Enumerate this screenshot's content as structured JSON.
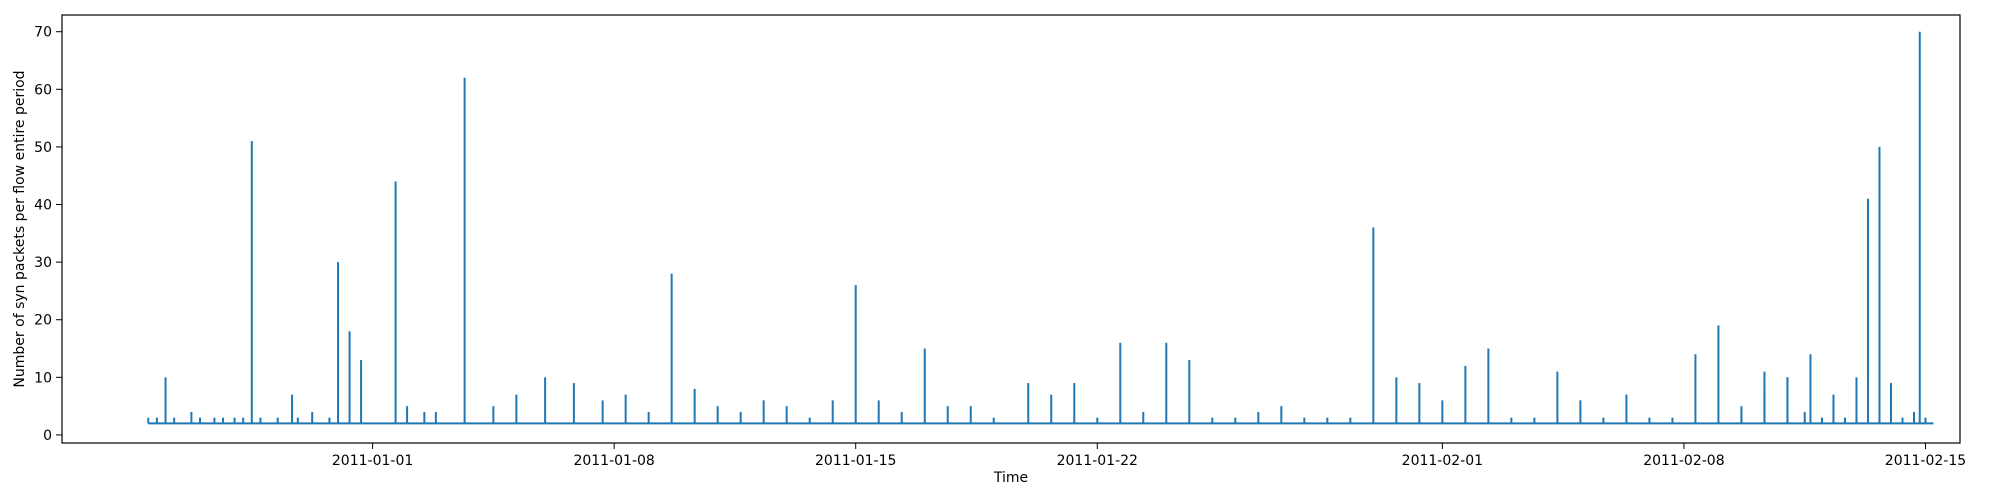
{
  "chart_data": {
    "type": "line",
    "title": "",
    "xlabel": "Time",
    "ylabel": "Number of syn packets per flow entire period",
    "x_axis_type": "date",
    "xlim": [
      "2010-12-23T00:00",
      "2011-02-16T00:00"
    ],
    "ylim": [
      -1.4,
      72.9
    ],
    "x_ticks": [
      "2011-01-01",
      "2011-01-08",
      "2011-01-15",
      "2011-01-22",
      "2011-02-01",
      "2011-02-08",
      "2011-02-15"
    ],
    "y_ticks": [
      0,
      10,
      20,
      30,
      40,
      50,
      60,
      70
    ],
    "grid": false,
    "legend": "none",
    "baseline": 2,
    "color": "#1f77b4",
    "series": [
      {
        "x": [
          "2010-12-25T12:00",
          "2010-12-25T18:00",
          "2010-12-26T00:00",
          "2010-12-26T06:00",
          "2010-12-26T18:00",
          "2010-12-27T00:00",
          "2010-12-27T10:00",
          "2010-12-27T16:00",
          "2010-12-28T00:00",
          "2010-12-28T06:00",
          "2010-12-28T12:00",
          "2010-12-28T18:00",
          "2010-12-29T06:00",
          "2010-12-29T16:00",
          "2010-12-29T20:00",
          "2010-12-30T06:00",
          "2010-12-30T18:00",
          "2010-12-31T00:00",
          "2010-12-31T08:00",
          "2010-12-31T16:00",
          "2011-01-01T16:00",
          "2011-01-02T00:00",
          "2011-01-02T12:00",
          "2011-01-02T20:00",
          "2011-01-03T16:00",
          "2011-01-04T12:00",
          "2011-01-05T04:00",
          "2011-01-06T00:00",
          "2011-01-06T20:00",
          "2011-01-07T16:00",
          "2011-01-08T08:00",
          "2011-01-09T00:00",
          "2011-01-09T16:00",
          "2011-01-10T08:00",
          "2011-01-11T00:00",
          "2011-01-11T16:00",
          "2011-01-12T08:00",
          "2011-01-13T00:00",
          "2011-01-13T16:00",
          "2011-01-14T08:00",
          "2011-01-15T00:00",
          "2011-01-15T16:00",
          "2011-01-16T08:00",
          "2011-01-17T00:00",
          "2011-01-17T16:00",
          "2011-01-18T08:00",
          "2011-01-19T00:00",
          "2011-01-20T00:00",
          "2011-01-20T16:00",
          "2011-01-21T08:00",
          "2011-01-22T00:00",
          "2011-01-22T16:00",
          "2011-01-23T08:00",
          "2011-01-24T00:00",
          "2011-01-24T16:00",
          "2011-01-25T08:00",
          "2011-01-26T00:00",
          "2011-01-26T16:00",
          "2011-01-27T08:00",
          "2011-01-28T00:00",
          "2011-01-28T16:00",
          "2011-01-29T08:00",
          "2011-01-30T00:00",
          "2011-01-30T16:00",
          "2011-01-31T08:00",
          "2011-02-01T00:00",
          "2011-02-01T16:00",
          "2011-02-02T08:00",
          "2011-02-03T00:00",
          "2011-02-03T16:00",
          "2011-02-04T08:00",
          "2011-02-05T00:00",
          "2011-02-05T16:00",
          "2011-02-06T08:00",
          "2011-02-07T00:00",
          "2011-02-07T16:00",
          "2011-02-08T08:00",
          "2011-02-09T00:00",
          "2011-02-09T16:00",
          "2011-02-10T08:00",
          "2011-02-11T00:00",
          "2011-02-11T16:00",
          "2011-02-12T08:00",
          "2011-02-13T00:00",
          "2011-02-13T16:00"
        ],
        "y": [
          3,
          3,
          10,
          3,
          4,
          3,
          3,
          3,
          3,
          3,
          51,
          3,
          3,
          7,
          3,
          4,
          3,
          30,
          18,
          13,
          44,
          5,
          4,
          4,
          62,
          5,
          7,
          10,
          9,
          6,
          7,
          4,
          28,
          8,
          5,
          4,
          6,
          5,
          3,
          6,
          26,
          6,
          4,
          15,
          5,
          5,
          3,
          9,
          7,
          9,
          3,
          16,
          4,
          16,
          13,
          3,
          3,
          4,
          5,
          3,
          3,
          3,
          36,
          10,
          9,
          6,
          12,
          15,
          3,
          3,
          11,
          6,
          3,
          7,
          3,
          3,
          14,
          19,
          5,
          11,
          10,
          14,
          6,
          10,
          3
        ]
      },
      {
        "x": [
          "2011-02-09T16:00",
          "2011-02-10T08:00",
          "2011-02-11T00:00",
          "2011-02-11T12:00",
          "2011-02-12T00:00",
          "2011-02-12T08:00",
          "2011-02-12T16:00",
          "2011-02-13T00:00",
          "2011-02-13T08:00",
          "2011-02-13T16:00",
          "2011-02-14T00:00",
          "2011-02-14T08:00",
          "2011-02-14T16:00",
          "2011-02-14T20:00",
          "2011-02-15T00:00"
        ],
        "y": [
          3,
          8,
          10,
          4,
          3,
          7,
          3,
          3,
          41,
          50,
          9,
          3,
          4,
          70,
          3
        ]
      }
    ]
  }
}
